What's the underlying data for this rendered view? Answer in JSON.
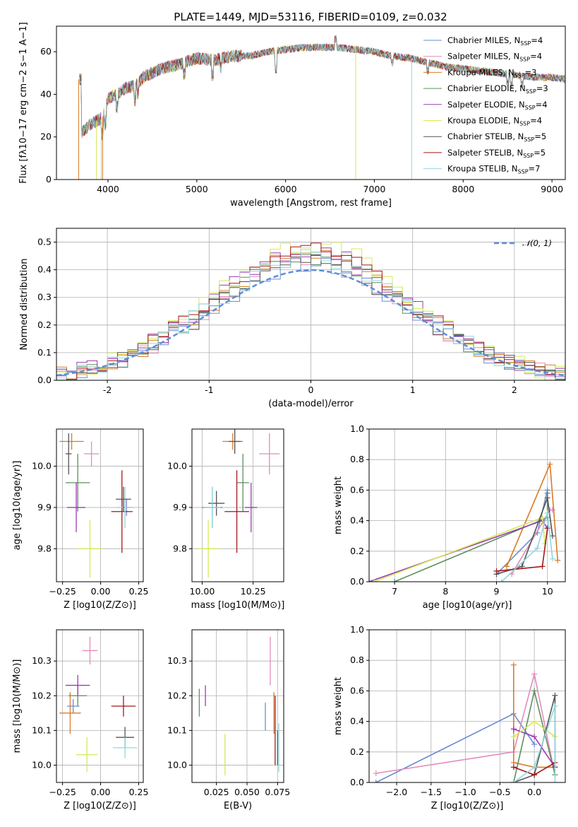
{
  "title": "PLATE=1449, MJD=53116, FIBERID=0109, z=0.032",
  "colors": {
    "Chabrier MILES": "#6b8bd6",
    "Salpeter MILES": "#e48bbd",
    "Kroupa MILES": "#d97b27",
    "Chabrier ELODIE": "#5f8f5f",
    "Salpeter ELODIE": "#9b3bb0",
    "Kroupa ELODIE": "#d6e85a",
    "Chabrier STELIB": "#555555",
    "Salpeter STELIB": "#a3171c",
    "Kroupa STELIB": "#8fd8de",
    "normal": "#5b8fd6"
  },
  "chart_data": [
    {
      "type": "line",
      "name": "spectrum",
      "xlabel": "wavelength [Angstrom, rest frame]",
      "ylabel": "Flux [f",
      "ylabel_full": "Flux [fλ10−17 erg cm−2 s−1 A−1]",
      "xlim": [
        3420,
        9150
      ],
      "ylim": [
        0,
        72
      ],
      "xticks": [
        4000,
        5000,
        6000,
        7000,
        8000,
        9000
      ],
      "yticks": [
        0,
        20,
        40,
        60
      ],
      "legend": [
        {
          "name": "Chabrier MILES",
          "nssp": 4
        },
        {
          "name": "Salpeter MILES",
          "nssp": 4
        },
        {
          "name": "Kroupa MILES",
          "nssp": 3
        },
        {
          "name": "Chabrier ELODIE",
          "nssp": 3
        },
        {
          "name": "Salpeter ELODIE",
          "nssp": 4
        },
        {
          "name": "Kroupa ELODIE",
          "nssp": 4
        },
        {
          "name": "Chabrier STELIB",
          "nssp": 5
        },
        {
          "name": "Salpeter STELIB",
          "nssp": 5
        },
        {
          "name": "Kroupa STELIB",
          "nssp": 7
        }
      ],
      "legend_prefix": "N",
      "legend_sub": "SSP",
      "legend_placement": "right",
      "continuum": [
        [
          3700,
          22
        ],
        [
          3800,
          26
        ],
        [
          3900,
          28
        ],
        [
          3950,
          30
        ],
        [
          4000,
          38
        ],
        [
          4100,
          40
        ],
        [
          4200,
          43
        ],
        [
          4300,
          44
        ],
        [
          4400,
          48
        ],
        [
          4500,
          50
        ],
        [
          4600,
          52
        ],
        [
          4800,
          54
        ],
        [
          5000,
          57
        ],
        [
          5200,
          56
        ],
        [
          5400,
          58
        ],
        [
          5600,
          58
        ],
        [
          5800,
          60
        ],
        [
          6000,
          61
        ],
        [
          6200,
          62
        ],
        [
          6400,
          62
        ],
        [
          6600,
          62
        ],
        [
          6800,
          61
        ],
        [
          7000,
          60
        ],
        [
          7200,
          58
        ],
        [
          7400,
          57
        ],
        [
          7600,
          55
        ],
        [
          7800,
          53
        ],
        [
          8000,
          52
        ],
        [
          8200,
          51
        ],
        [
          8400,
          50
        ],
        [
          8600,
          49
        ],
        [
          8800,
          48
        ],
        [
          9000,
          48
        ],
        [
          9150,
          47
        ]
      ],
      "spikes": [
        3670,
        3870,
        3925,
        3940,
        6790,
        7420
      ]
    },
    {
      "type": "histogram",
      "name": "residuals",
      "xlabel": "(data-model)/error",
      "ylabel": "Normed distribution",
      "xlim": [
        -2.5,
        2.5
      ],
      "ylim": [
        0,
        0.55
      ],
      "xticks": [
        -2,
        -1,
        0,
        1,
        2
      ],
      "yticks": [
        0.0,
        0.1,
        0.2,
        0.3,
        0.4,
        0.5
      ],
      "bin_width": 0.1,
      "reference_curve": "normal(0,1)",
      "reference_label": "𝒩(0, 1)",
      "peaks": {
        "Chabrier MILES": 0.44,
        "Salpeter MILES": 0.45,
        "Kroupa MILES": 0.48,
        "Chabrier ELODIE": 0.46,
        "Salpeter ELODIE": 0.5,
        "Kroupa ELODIE": 0.52,
        "Chabrier STELIB": 0.45,
        "Salpeter STELIB": 0.5,
        "Kroupa STELIB": 0.47
      }
    },
    {
      "type": "errorbar",
      "name": "age-vs-Z",
      "xlabel": "Z [log10(Z/Z⊙)]",
      "ylabel": "age  [log10(age/yr)]",
      "xlim": [
        -0.29,
        0.28
      ],
      "ylim": [
        9.72,
        10.09
      ],
      "xticks": [
        -0.25,
        0.0,
        0.25
      ],
      "xticklabels": [
        "−0.25",
        "0.00",
        "0.25"
      ],
      "yticks": [
        9.8,
        9.9,
        10.0
      ],
      "points": [
        {
          "series": "Chabrier MILES",
          "x": 0.17,
          "xerr": 0.03,
          "y": 9.9,
          "yerr": 0.02
        },
        {
          "series": "Salpeter MILES",
          "x": -0.06,
          "xerr": 0.05,
          "y": 10.03,
          "yerr": 0.03
        },
        {
          "series": "Kroupa MILES",
          "x": -0.19,
          "xerr": 0.08,
          "y": 10.06,
          "yerr": 0.02
        },
        {
          "series": "Chabrier ELODIE",
          "x": -0.15,
          "xerr": 0.08,
          "y": 9.96,
          "yerr": 0.07
        },
        {
          "series": "Salpeter ELODIE",
          "x": -0.16,
          "xerr": 0.06,
          "y": 9.9,
          "yerr": 0.06
        },
        {
          "series": "Kroupa ELODIE",
          "x": -0.07,
          "xerr": 0.08,
          "y": 9.8,
          "yerr": 0.07
        },
        {
          "series": "Chabrier STELIB",
          "x": -0.21,
          "xerr": 0.02,
          "y": 10.03,
          "yerr": 0.05
        },
        {
          "series": "Salpeter STELIB",
          "x": 0.14,
          "xerr": 0.07,
          "y": 9.89,
          "yerr": 0.1
        },
        {
          "series": "Kroupa STELIB",
          "x": 0.16,
          "xerr": 0.06,
          "y": 9.9,
          "yerr": 0.05
        },
        {
          "series": "Chabrier STELIB",
          "x": 0.15,
          "xerr": 0.05,
          "y": 9.92,
          "yerr": 0.03
        }
      ]
    },
    {
      "type": "errorbar",
      "name": "age-vs-mass",
      "xlabel": "mass [log10(M/M⊙)]",
      "ylabel": "",
      "xlim": [
        9.95,
        10.4
      ],
      "ylim": [
        9.72,
        10.09
      ],
      "xticks": [
        10.0,
        10.25
      ],
      "xticklabels": [
        "10.00",
        "10.25"
      ],
      "yticks": [
        9.8,
        9.9,
        10.0
      ],
      "points": [
        {
          "series": "Chabrier MILES",
          "x": 10.05,
          "xerr": 0.05,
          "y": 9.9,
          "yerr": 0.05
        },
        {
          "series": "Salpeter MILES",
          "x": 10.33,
          "xerr": 0.05,
          "y": 10.03,
          "yerr": 0.05
        },
        {
          "series": "Kroupa MILES",
          "x": 10.15,
          "xerr": 0.05,
          "y": 10.06,
          "yerr": 0.02
        },
        {
          "series": "Chabrier ELODIE",
          "x": 10.2,
          "xerr": 0.03,
          "y": 9.96,
          "yerr": 0.07
        },
        {
          "series": "Salpeter ELODIE",
          "x": 10.24,
          "xerr": 0.03,
          "y": 9.9,
          "yerr": 0.06
        },
        {
          "series": "Kroupa ELODIE",
          "x": 10.03,
          "xerr": 0.05,
          "y": 9.8,
          "yerr": 0.07
        },
        {
          "series": "Chabrier STELIB",
          "x": 10.07,
          "xerr": 0.04,
          "y": 9.91,
          "yerr": 0.03
        },
        {
          "series": "Salpeter STELIB",
          "x": 10.17,
          "xerr": 0.06,
          "y": 9.89,
          "yerr": 0.1
        },
        {
          "series": "Kroupa STELIB",
          "x": 10.05,
          "xerr": 0.04,
          "y": 9.9,
          "yerr": 0.05
        },
        {
          "series": "Chabrier STELIB",
          "x": 10.16,
          "xerr": 0.03,
          "y": 10.06,
          "yerr": 0.03
        }
      ]
    },
    {
      "type": "line",
      "name": "mass-weight-vs-age",
      "xlabel": "age  [log10(age/yr)]",
      "ylabel": "mass weight",
      "xlim": [
        6.5,
        10.35
      ],
      "ylim": [
        0,
        1.0
      ],
      "xticks": [
        7,
        8,
        9,
        10
      ],
      "yticks": [
        0.0,
        0.2,
        0.4,
        0.6,
        0.8,
        1.0
      ],
      "series": [
        {
          "name": "Chabrier MILES",
          "points": [
            [
              9.0,
              0.05
            ],
            [
              9.8,
              0.32
            ],
            [
              10.0,
              0.6
            ]
          ]
        },
        {
          "name": "Salpeter MILES",
          "points": [
            [
              9.3,
              0.05
            ],
            [
              10.05,
              0.47
            ],
            [
              10.1,
              0.47
            ]
          ]
        },
        {
          "name": "Kroupa MILES",
          "points": [
            [
              9.2,
              0.1
            ],
            [
              10.05,
              0.77
            ],
            [
              10.2,
              0.14
            ]
          ]
        },
        {
          "name": "Chabrier ELODIE",
          "points": [
            [
              7.0,
              0.0
            ],
            [
              10.0,
              0.42
            ],
            [
              10.0,
              0.58
            ]
          ]
        },
        {
          "name": "Salpeter ELODIE",
          "points": [
            [
              6.5,
              0.0
            ],
            [
              9.9,
              0.4
            ],
            [
              10.0,
              0.35
            ]
          ]
        },
        {
          "name": "Kroupa ELODIE",
          "points": [
            [
              6.6,
              0.0
            ],
            [
              9.9,
              0.42
            ],
            [
              9.95,
              0.25
            ]
          ]
        },
        {
          "name": "Chabrier STELIB",
          "points": [
            [
              9.0,
              0.05
            ],
            [
              9.5,
              0.1
            ],
            [
              10.0,
              0.55
            ],
            [
              10.1,
              0.3
            ]
          ]
        },
        {
          "name": "Salpeter STELIB",
          "points": [
            [
              9.0,
              0.07
            ],
            [
              9.9,
              0.1
            ],
            [
              10.0,
              0.35
            ]
          ]
        },
        {
          "name": "Kroupa STELIB",
          "points": [
            [
              9.1,
              0.0
            ],
            [
              9.8,
              0.22
            ],
            [
              10.0,
              0.45
            ],
            [
              10.1,
              0.15
            ]
          ]
        }
      ]
    },
    {
      "type": "errorbar",
      "name": "mass-vs-Z",
      "xlabel": "Z [log10(Z/Z⊙)]",
      "ylabel": "mass [log10(M/M⊙)]",
      "xlim": [
        -0.29,
        0.28
      ],
      "ylim": [
        9.95,
        10.39
      ],
      "xticks": [
        -0.25,
        0.0,
        0.25
      ],
      "xticklabels": [
        "−0.25",
        "0.00",
        "0.25"
      ],
      "yticks": [
        10.0,
        10.1,
        10.2,
        10.3
      ],
      "points": [
        {
          "series": "Chabrier MILES",
          "x": -0.18,
          "xerr": 0.04,
          "y": 10.17,
          "yerr": 0.02
        },
        {
          "series": "Salpeter MILES",
          "x": -0.07,
          "xerr": 0.05,
          "y": 10.33,
          "yerr": 0.04
        },
        {
          "series": "Kroupa MILES",
          "x": -0.2,
          "xerr": 0.07,
          "y": 10.15,
          "yerr": 0.06
        },
        {
          "series": "Chabrier ELODIE",
          "x": -0.15,
          "xerr": 0.06,
          "y": 10.2,
          "yerr": 0.03
        },
        {
          "series": "Salpeter ELODIE",
          "x": -0.15,
          "xerr": 0.08,
          "y": 10.23,
          "yerr": 0.03
        },
        {
          "series": "Kroupa ELODIE",
          "x": -0.09,
          "xerr": 0.07,
          "y": 10.03,
          "yerr": 0.05
        },
        {
          "series": "Chabrier STELIB",
          "x": 0.16,
          "xerr": 0.06,
          "y": 10.08,
          "yerr": 0.03
        },
        {
          "series": "Salpeter STELIB",
          "x": 0.15,
          "xerr": 0.08,
          "y": 10.17,
          "yerr": 0.03
        },
        {
          "series": "Kroupa STELIB",
          "x": 0.16,
          "xerr": 0.08,
          "y": 10.05,
          "yerr": 0.03
        }
      ]
    },
    {
      "type": "errorbar",
      "name": "mass-vs-EBV",
      "xlabel": "E(B-V)",
      "ylabel": "",
      "xlim": [
        0.005,
        0.08
      ],
      "ylim": [
        9.95,
        10.39
      ],
      "xticks": [
        0.025,
        0.05,
        0.075
      ],
      "xticklabels": [
        "0.025",
        "0.050",
        "0.075"
      ],
      "yticks": [
        10.0,
        10.1,
        10.2,
        10.3
      ],
      "points": [
        {
          "series": "Chabrier MILES",
          "x": 0.065,
          "xerr": 0.0,
          "y": 10.14,
          "yerr": 0.04
        },
        {
          "series": "Salpeter MILES",
          "x": 0.069,
          "xerr": 0.0,
          "y": 10.3,
          "yerr": 0.07
        },
        {
          "series": "Kroupa MILES",
          "x": 0.072,
          "xerr": 0.0,
          "y": 10.15,
          "yerr": 0.06
        },
        {
          "series": "Chabrier ELODIE",
          "x": 0.011,
          "xerr": 0.0,
          "y": 10.18,
          "yerr": 0.04
        },
        {
          "series": "Salpeter ELODIE",
          "x": 0.016,
          "xerr": 0.0,
          "y": 10.2,
          "yerr": 0.03
        },
        {
          "series": "Kroupa ELODIE",
          "x": 0.032,
          "xerr": 0.0,
          "y": 10.03,
          "yerr": 0.06
        },
        {
          "series": "Chabrier STELIB",
          "x": 0.075,
          "xerr": 0.0,
          "y": 10.05,
          "yerr": 0.05
        },
        {
          "series": "Salpeter STELIB",
          "x": 0.073,
          "xerr": 0.0,
          "y": 10.1,
          "yerr": 0.1
        },
        {
          "series": "Kroupa STELIB",
          "x": 0.076,
          "xerr": 0.0,
          "y": 10.05,
          "yerr": 0.07
        }
      ]
    },
    {
      "type": "line",
      "name": "mass-weight-vs-Z",
      "xlabel": "Z [log10(Z/Z⊙)]",
      "ylabel": "mass weight",
      "xlim": [
        -2.4,
        0.45
      ],
      "ylim": [
        0,
        1.0
      ],
      "xticks": [
        -2.0,
        -1.5,
        -1.0,
        -0.5,
        0.0
      ],
      "xticklabels": [
        "−2.0",
        "−1.5",
        "−1.0",
        "−0.5",
        "0.0"
      ],
      "yticks": [
        0.0,
        0.2,
        0.4,
        0.6,
        0.8,
        1.0
      ],
      "series": [
        {
          "name": "Chabrier MILES",
          "points": [
            [
              -2.3,
              0.0
            ],
            [
              -0.3,
              0.45
            ],
            [
              0.0,
              0.25
            ]
          ]
        },
        {
          "name": "Salpeter MILES",
          "points": [
            [
              -2.3,
              0.06
            ],
            [
              -0.3,
              0.2
            ],
            [
              0.0,
              0.71
            ],
            [
              0.3,
              0.05
            ]
          ]
        },
        {
          "name": "Kroupa MILES",
          "points": [
            [
              -0.3,
              0.77
            ],
            [
              -0.3,
              0.13
            ],
            [
              0.0,
              0.1
            ],
            [
              0.3,
              0.1
            ]
          ]
        },
        {
          "name": "Chabrier ELODIE",
          "points": [
            [
              -0.3,
              0.0
            ],
            [
              0.0,
              0.6
            ],
            [
              0.3,
              0.05
            ]
          ]
        },
        {
          "name": "Salpeter ELODIE",
          "points": [
            [
              -0.3,
              0.35
            ],
            [
              0.0,
              0.3
            ],
            [
              0.3,
              0.1
            ]
          ]
        },
        {
          "name": "Kroupa ELODIE",
          "points": [
            [
              -0.3,
              0.3
            ],
            [
              0.0,
              0.4
            ],
            [
              0.3,
              0.3
            ]
          ]
        },
        {
          "name": "Chabrier STELIB",
          "points": [
            [
              -0.3,
              0.0
            ],
            [
              0.0,
              0.05
            ],
            [
              0.3,
              0.57
            ],
            [
              0.3,
              0.1
            ]
          ]
        },
        {
          "name": "Salpeter STELIB",
          "points": [
            [
              -0.3,
              0.1
            ],
            [
              0.0,
              0.05
            ],
            [
              0.3,
              0.13
            ]
          ]
        },
        {
          "name": "Kroupa STELIB",
          "points": [
            [
              -0.3,
              0.0
            ],
            [
              0.0,
              0.1
            ],
            [
              0.3,
              0.5
            ],
            [
              0.3,
              0.0
            ]
          ]
        }
      ]
    }
  ]
}
